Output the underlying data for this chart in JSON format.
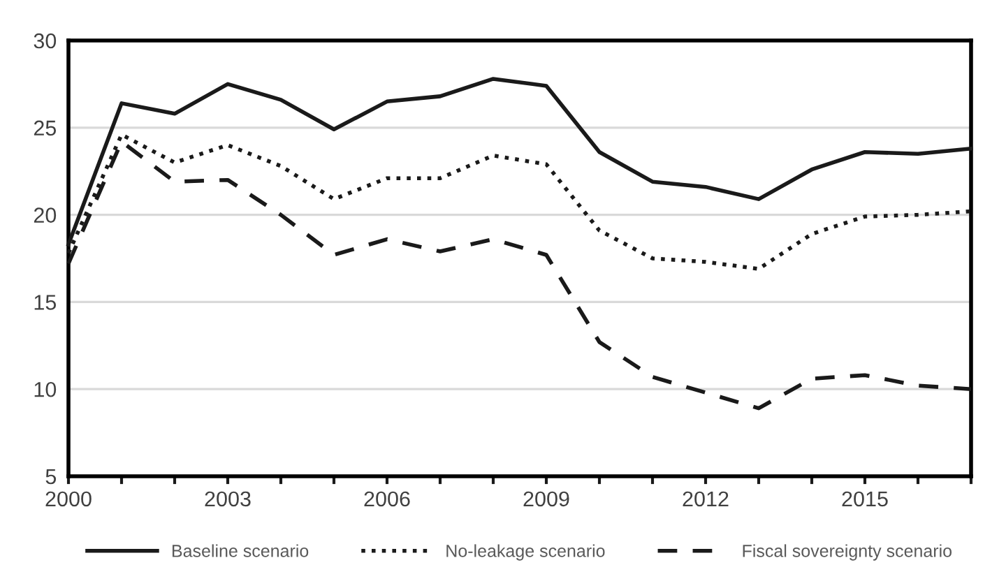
{
  "chart_data": {
    "type": "line",
    "x": [
      2000,
      2001,
      2002,
      2003,
      2004,
      2005,
      2006,
      2007,
      2008,
      2009,
      2010,
      2011,
      2012,
      2013,
      2014,
      2015,
      2016,
      2017
    ],
    "series": [
      {
        "name": "Baseline scenario",
        "color": "#1a1a1a",
        "line_style": "solid",
        "values": [
          18.3,
          26.4,
          25.8,
          27.5,
          26.6,
          24.9,
          26.5,
          26.8,
          27.8,
          27.4,
          23.6,
          21.9,
          21.6,
          20.9,
          22.6,
          23.6,
          23.5,
          23.8
        ]
      },
      {
        "name": "No-leakage scenario",
        "color": "#1a1a1a",
        "line_style": "dotted",
        "values": [
          17.8,
          24.6,
          23.0,
          24.0,
          22.8,
          20.9,
          22.1,
          22.1,
          23.4,
          22.9,
          19.1,
          17.5,
          17.3,
          16.9,
          18.9,
          19.9,
          20.0,
          20.2
        ]
      },
      {
        "name": "Fiscal sovereignty scenario",
        "color": "#1a1a1a",
        "line_style": "dashed",
        "values": [
          17.2,
          24.2,
          21.9,
          22.0,
          20.0,
          17.7,
          18.6,
          17.9,
          18.6,
          17.7,
          12.7,
          10.7,
          9.8,
          8.9,
          10.6,
          10.8,
          10.2,
          10.0
        ]
      }
    ],
    "xlim": [
      2000,
      2017
    ],
    "xticks": [
      2000,
      {
        "value": 2001,
        "label": null
      },
      {
        "value": 2002,
        "label": null
      },
      2003,
      {
        "value": 2004,
        "label": null
      },
      {
        "value": 2005,
        "label": null
      },
      2006,
      {
        "value": 2007,
        "label": null
      },
      {
        "value": 2008,
        "label": null
      },
      2009,
      {
        "value": 2010,
        "label": null
      },
      {
        "value": 2011,
        "label": null
      },
      2012,
      {
        "value": 2013,
        "label": null
      },
      {
        "value": 2014,
        "label": null
      },
      2015,
      {
        "value": 2016,
        "label": null
      },
      {
        "value": 2017,
        "label": null
      }
    ],
    "ylim": [
      5,
      30
    ],
    "yticks": [
      5,
      10,
      15,
      20,
      25,
      30
    ],
    "grid": "y",
    "legend": "bottom",
    "marker": "none"
  }
}
